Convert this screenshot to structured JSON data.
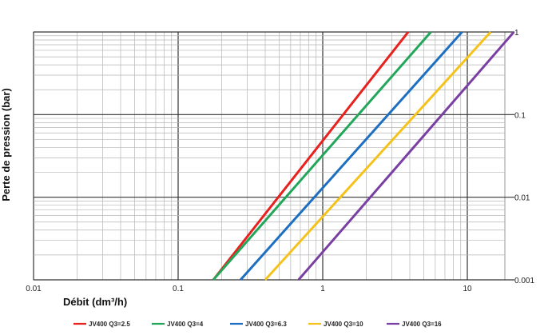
{
  "chart_data": {
    "type": "line",
    "title": "",
    "xlabel": "Débit (dm³/h)",
    "ylabel": "Perte de pression (bar)",
    "x_scale": "log",
    "y_scale": "log",
    "xlim": [
      0.01,
      20
    ],
    "ylim": [
      0.001,
      1
    ],
    "grid": true,
    "legend_position": "bottom",
    "x_ticks": [
      "0.01",
      "0.1",
      "1",
      "10"
    ],
    "y_ticks": [
      "0.001",
      "0.01",
      "0.1",
      "1"
    ],
    "series": [
      {
        "name": "JV400 Q3=2.5",
        "color": "#e8211f",
        "x": [
          0.175,
          3.9
        ],
        "y": [
          0.001,
          1
        ]
      },
      {
        "name": "JV400 Q3=4",
        "color": "#22a65a",
        "x": [
          0.175,
          5.6
        ],
        "y": [
          0.001,
          1
        ]
      },
      {
        "name": "JV400 Q3=6.3",
        "color": "#1d6fc1",
        "x": [
          0.27,
          9.2
        ],
        "y": [
          0.001,
          1
        ]
      },
      {
        "name": "JV400 Q3=10",
        "color": "#f5c21b",
        "x": [
          0.4,
          14.5
        ],
        "y": [
          0.001,
          1
        ]
      },
      {
        "name": "JV400 Q3=16",
        "color": "#7a3fa2",
        "x": [
          0.68,
          21
        ],
        "y": [
          0.001,
          1
        ]
      }
    ]
  }
}
